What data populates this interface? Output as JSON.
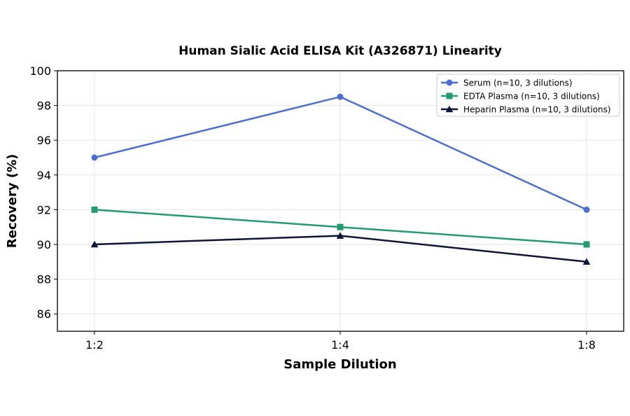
{
  "chart_data": {
    "type": "line",
    "title": "Human Sialic Acid ELISA Kit (A326871) Linearity",
    "xlabel": "Sample Dilution",
    "ylabel": "Recovery (%)",
    "categories": [
      "1:2",
      "1:4",
      "1:8"
    ],
    "ylim": [
      85,
      100
    ],
    "yticks": [
      86,
      88,
      90,
      92,
      94,
      96,
      98,
      100
    ],
    "grid": true,
    "legend_position": "top-right",
    "series": [
      {
        "name": "Serum (n=10, 3 dilutions)",
        "values": [
          95,
          98.5,
          92
        ],
        "color": "#4c6fd1",
        "marker": "circle"
      },
      {
        "name": "EDTA Plasma (n=10, 3 dilutions)",
        "values": [
          92,
          91,
          90
        ],
        "color": "#239a72",
        "marker": "square"
      },
      {
        "name": "Heparin Plasma (n=10, 3 dilutions)",
        "values": [
          90,
          90.5,
          89
        ],
        "color": "#0d1538",
        "marker": "triangle"
      }
    ]
  }
}
